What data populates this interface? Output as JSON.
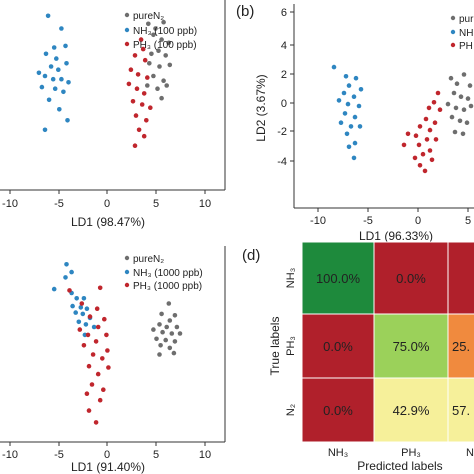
{
  "panels": {
    "a": {
      "legend": [
        "pureN₂",
        "NH₃ (100 ppb)",
        "PH₃ (100 ppb)"
      ],
      "xlabel": "LD1 (98.47%)",
      "xticks": [
        "-10",
        "-5",
        "0",
        "5",
        "10"
      ]
    },
    "b": {
      "label": "(b)",
      "legend": [
        "pur",
        "NH",
        "PH"
      ],
      "xlabel": "LD1 (96.33%)",
      "ylabel": "LD2 (3.67%)",
      "xticks": [
        "-10",
        "-5",
        "0",
        "5"
      ],
      "yticks": [
        "6",
        "4",
        "2",
        "0",
        "-2",
        "-4"
      ]
    },
    "c": {
      "legend": [
        "pureN₂",
        "NH₃ (1000 ppb)",
        "PH₃ (1000 ppb)"
      ],
      "xlabel": "LD1 (91.40%)",
      "xticks": [
        "-10",
        "-5",
        "0",
        "5",
        "10"
      ]
    },
    "d": {
      "label": "(d)",
      "ylabel": "True labels",
      "xlabel": "Predicted labels",
      "row_labels": [
        "NH₃",
        "PH₃",
        "N₂"
      ],
      "col_labels": [
        "NH₃",
        "PH₃",
        "N"
      ],
      "cells": [
        [
          "100.0%",
          "0.0%",
          ""
        ],
        [
          "0.0%",
          "75.0%",
          "25."
        ],
        [
          "0.0%",
          "42.9%",
          "57."
        ]
      ]
    }
  },
  "colors": {
    "pureN2": "#6e6e6e",
    "NH3": "#2e86c1",
    "PH3": "#c0262d",
    "heat_green_dark": "#1e8a3c",
    "heat_red": "#b0202b",
    "heat_green_light": "#9bd15a",
    "heat_orange": "#f08a3e",
    "heat_yellow": "#f6f09a"
  },
  "chart_data": [
    {
      "type": "scatter",
      "panel": "a",
      "xlabel": "LD1 (98.47%)",
      "xlim": [
        -11,
        11
      ],
      "series": [
        {
          "name": "pureN₂",
          "color": "#6e6e6e",
          "points": [
            [
              3.5,
              4.5
            ],
            [
              4.2,
              4.2
            ],
            [
              5.0,
              4.6
            ],
            [
              4.0,
              3.8
            ],
            [
              4.8,
              3.5
            ],
            [
              5.5,
              3.3
            ],
            [
              3.8,
              2.6
            ],
            [
              4.5,
              2.8
            ],
            [
              5.2,
              2.5
            ],
            [
              3.6,
              2.0
            ],
            [
              4.6,
              1.8
            ],
            [
              5.6,
              1.9
            ],
            [
              4.0,
              1.2
            ],
            [
              5.0,
              0.9
            ],
            [
              3.4,
              0.6
            ],
            [
              4.4,
              0.4
            ],
            [
              5.3,
              0.6
            ],
            [
              4.8,
              -0.2
            ]
          ]
        },
        {
          "name": "NH₃ (100 ppb)",
          "color": "#2e86c1",
          "points": [
            [
              -6.3,
              5.0
            ],
            [
              -5.0,
              4.2
            ],
            [
              -5.7,
              3.0
            ],
            [
              -4.6,
              3.1
            ],
            [
              -6.5,
              2.6
            ],
            [
              -5.5,
              2.3
            ],
            [
              -4.5,
              2.0
            ],
            [
              -6.0,
              1.8
            ],
            [
              -5.3,
              1.6
            ],
            [
              -7.2,
              1.4
            ],
            [
              -6.6,
              1.2
            ],
            [
              -5.8,
              1.0
            ],
            [
              -5.0,
              1.0
            ],
            [
              -4.3,
              0.8
            ],
            [
              -6.9,
              0.5
            ],
            [
              -5.6,
              0.4
            ],
            [
              -4.8,
              0.2
            ],
            [
              -6.2,
              -0.3
            ],
            [
              -5.2,
              -0.9
            ],
            [
              -4.4,
              -1.6
            ],
            [
              -6.6,
              -2.2
            ]
          ]
        },
        {
          "name": "PH₃ (100 ppb)",
          "color": "#c0262d",
          "points": [
            [
              2.8,
              3.5
            ],
            [
              3.0,
              2.9
            ],
            [
              2.2,
              2.5
            ],
            [
              3.2,
              2.2
            ],
            [
              1.8,
              1.6
            ],
            [
              2.5,
              1.3
            ],
            [
              3.4,
              1.1
            ],
            [
              1.6,
              0.7
            ],
            [
              2.4,
              0.4
            ],
            [
              3.1,
              0.1
            ],
            [
              2.0,
              -0.4
            ],
            [
              2.9,
              -0.6
            ],
            [
              3.7,
              -0.8
            ],
            [
              2.3,
              -1.3
            ],
            [
              3.3,
              -1.6
            ],
            [
              2.6,
              -2.2
            ],
            [
              3.1,
              -2.6
            ],
            [
              2.2,
              -3.2
            ]
          ]
        }
      ]
    },
    {
      "type": "scatter",
      "panel": "b",
      "xlabel": "LD1 (96.33%)",
      "ylabel": "LD2 (3.67%)",
      "xlim": [
        -12,
        6
      ],
      "ylim": [
        -5,
        6
      ],
      "series": [
        {
          "name": "pur",
          "color": "#6e6e6e",
          "points": [
            [
              3.7,
              2.0
            ],
            [
              4.3,
              1.7
            ],
            [
              5.0,
              2.2
            ],
            [
              5.6,
              1.6
            ],
            [
              4.0,
              1.2
            ],
            [
              4.7,
              1.0
            ],
            [
              5.4,
              0.9
            ],
            [
              3.4,
              0.6
            ],
            [
              4.2,
              0.4
            ],
            [
              5.0,
              0.3
            ],
            [
              5.7,
              0.5
            ],
            [
              3.8,
              -0.1
            ],
            [
              4.6,
              -0.3
            ],
            [
              5.3,
              -0.4
            ],
            [
              4.1,
              -0.9
            ],
            [
              4.9,
              -1.0
            ]
          ]
        },
        {
          "name": "NH",
          "color": "#2e86c1",
          "points": [
            [
              -8.0,
              2.6
            ],
            [
              -6.8,
              2.1
            ],
            [
              -5.8,
              2.0
            ],
            [
              -6.5,
              1.6
            ],
            [
              -5.3,
              1.4
            ],
            [
              -7.0,
              1.2
            ],
            [
              -6.0,
              1.0
            ],
            [
              -7.5,
              0.8
            ],
            [
              -6.6,
              0.6
            ],
            [
              -5.5,
              0.5
            ],
            [
              -6.9,
              0.1
            ],
            [
              -5.9,
              -0.1
            ],
            [
              -7.3,
              -0.4
            ],
            [
              -6.3,
              -0.6
            ],
            [
              -5.4,
              -0.6
            ],
            [
              -6.7,
              -1.0
            ],
            [
              -5.9,
              -1.5
            ],
            [
              -6.5,
              -1.7
            ],
            [
              -6.0,
              -2.3
            ]
          ]
        },
        {
          "name": "PH",
          "color": "#c0262d",
          "points": [
            [
              2.4,
              1.2
            ],
            [
              2.0,
              0.7
            ],
            [
              1.5,
              0.4
            ],
            [
              2.6,
              0.3
            ],
            [
              1.2,
              -0.2
            ],
            [
              2.1,
              -0.4
            ],
            [
              0.6,
              -0.6
            ],
            [
              1.6,
              -0.8
            ],
            [
              -0.6,
              -1.0
            ],
            [
              0.2,
              -1.1
            ],
            [
              1.3,
              -1.3
            ],
            [
              2.2,
              -1.3
            ],
            [
              -1.0,
              -1.6
            ],
            [
              0.5,
              -1.6
            ],
            [
              1.6,
              -1.9
            ],
            [
              0.9,
              -2.1
            ],
            [
              0.1,
              -2.3
            ],
            [
              1.8,
              -2.4
            ],
            [
              0.6,
              -2.7
            ],
            [
              1.1,
              -3.0
            ]
          ]
        }
      ]
    },
    {
      "type": "scatter",
      "panel": "c",
      "xlabel": "LD1 (91.40%)",
      "xlim": [
        -11,
        11
      ],
      "series": [
        {
          "name": "pureN₂",
          "color": "#6e6e6e",
          "points": [
            [
              5.5,
              3.6
            ],
            [
              4.8,
              2.8
            ],
            [
              6.1,
              2.7
            ],
            [
              5.6,
              2.3
            ],
            [
              4.6,
              2.0
            ],
            [
              5.3,
              1.8
            ],
            [
              6.3,
              1.8
            ],
            [
              4.0,
              1.6
            ],
            [
              4.9,
              1.4
            ],
            [
              5.8,
              1.3
            ],
            [
              6.6,
              1.3
            ],
            [
              4.3,
              0.9
            ],
            [
              5.2,
              0.8
            ],
            [
              6.1,
              0.7
            ],
            [
              4.7,
              0.4
            ],
            [
              5.6,
              0.2
            ],
            [
              6.0,
              -0.2
            ],
            [
              4.6,
              -0.3
            ]
          ]
        },
        {
          "name": "NH₃ (1000 ppb)",
          "color": "#2e86c1",
          "points": [
            [
              -4.5,
              6.6
            ],
            [
              -4.0,
              6.0
            ],
            [
              -4.6,
              5.6
            ],
            [
              -4.0,
              4.4
            ],
            [
              -3.5,
              4.0
            ],
            [
              -2.8,
              4.0
            ],
            [
              -3.9,
              3.4
            ],
            [
              -3.1,
              3.3
            ],
            [
              -2.5,
              3.2
            ],
            [
              -3.6,
              2.9
            ],
            [
              -2.9,
              2.8
            ],
            [
              -2.2,
              2.5
            ],
            [
              -3.3,
              2.2
            ],
            [
              -2.6,
              2.0
            ],
            [
              -1.8,
              1.8
            ],
            [
              -2.7,
              1.2
            ],
            [
              -5.7,
              4.7
            ]
          ]
        },
        {
          "name": "PH₃ (1000 ppb)",
          "color": "#c0262d",
          "points": [
            [
              -1.2,
              4.8
            ],
            [
              -4.2,
              4.6
            ],
            [
              -3.0,
              3.6
            ],
            [
              -1.5,
              3.2
            ],
            [
              -2.2,
              2.6
            ],
            [
              -0.8,
              2.4
            ],
            [
              -1.4,
              1.8
            ],
            [
              -3.2,
              1.6
            ],
            [
              -2.4,
              1.2
            ],
            [
              -0.6,
              1.2
            ],
            [
              -1.6,
              0.7
            ],
            [
              -2.8,
              0.4
            ],
            [
              -0.5,
              0.0
            ],
            [
              -1.9,
              -0.3
            ],
            [
              -1.0,
              -0.6
            ],
            [
              -2.3,
              -1.2
            ],
            [
              -0.4,
              -1.3
            ],
            [
              -1.4,
              -1.8
            ],
            [
              -2.0,
              -2.6
            ],
            [
              -0.9,
              -3.0
            ],
            [
              -2.5,
              -3.3
            ],
            [
              -1.2,
              -3.8
            ],
            [
              -2.3,
              -4.6
            ],
            [
              -1.6,
              -5.5
            ]
          ]
        }
      ]
    },
    {
      "type": "heatmap",
      "panel": "d",
      "title": "",
      "xlabel": "Predicted labels",
      "ylabel": "True labels",
      "rows": [
        "NH₃",
        "PH₃",
        "N₂"
      ],
      "cols": [
        "NH₃",
        "PH₃",
        "N"
      ],
      "values": [
        [
          100.0,
          0.0,
          null
        ],
        [
          0.0,
          75.0,
          25.0
        ],
        [
          0.0,
          42.9,
          57.1
        ]
      ]
    }
  ]
}
